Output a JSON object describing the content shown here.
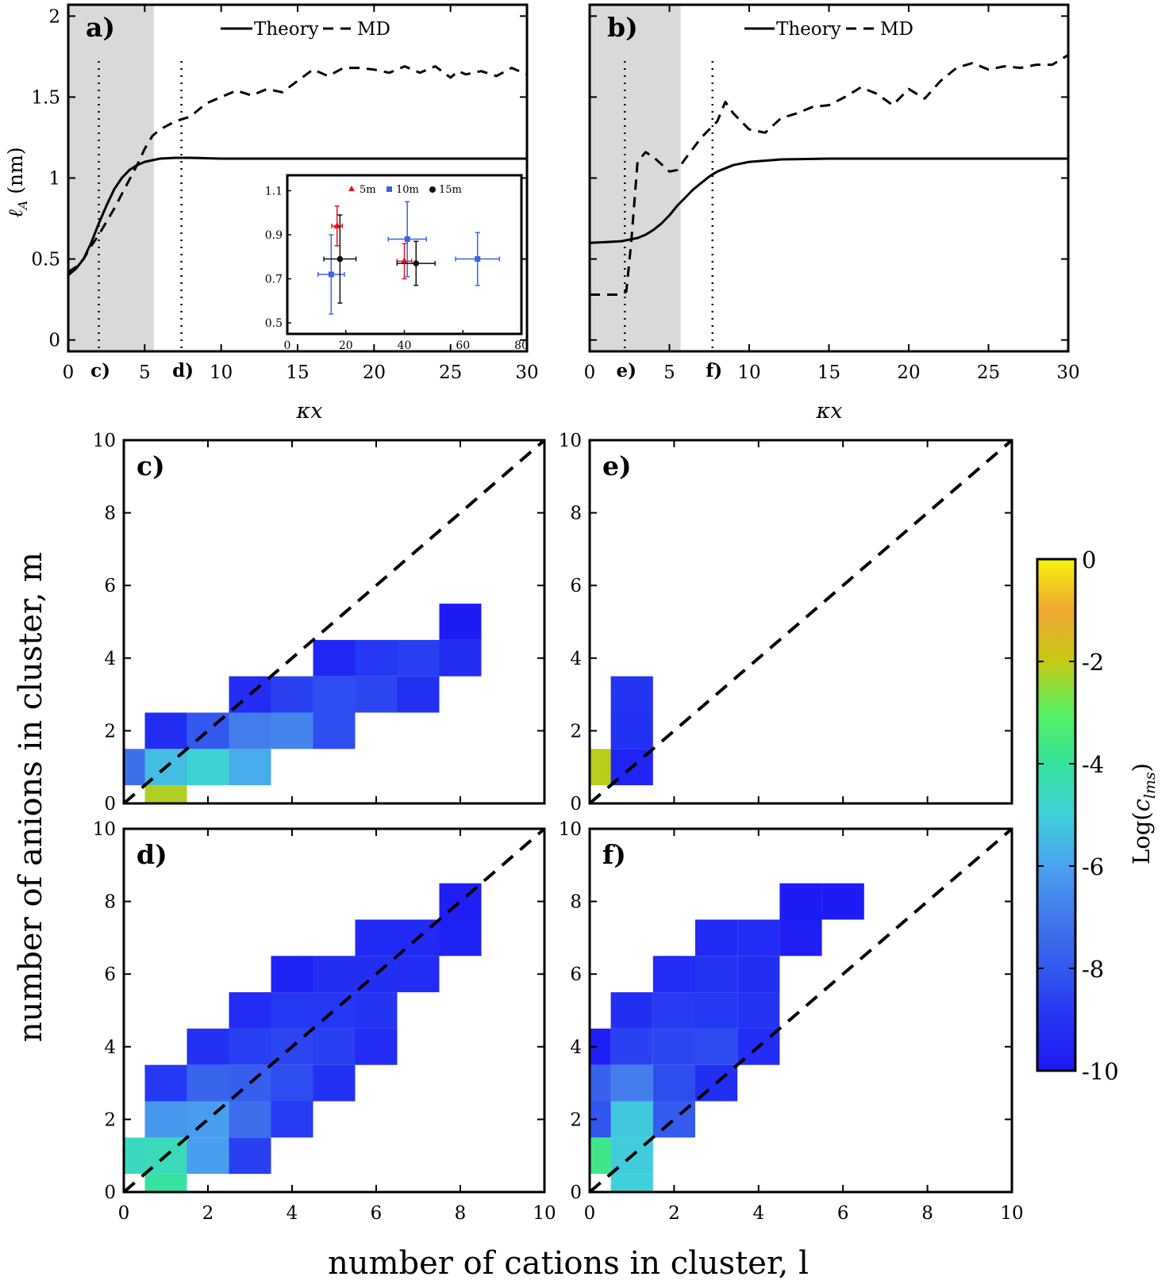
{
  "chart_data": [
    {
      "id": "a",
      "type": "line",
      "panel_label": "a)",
      "xlabel": "κx",
      "ylabel": "ℓA (nm)",
      "xlim": [
        0,
        30
      ],
      "ylim": [
        -0.07,
        2.07
      ],
      "xticks": [
        0,
        5,
        10,
        15,
        20,
        25,
        30
      ],
      "yticks": [
        0,
        0.5,
        1,
        1.5,
        2
      ],
      "ytick_labels": [
        "0",
        "0.5",
        "1",
        "1.5",
        "2"
      ],
      "shaded_region": [
        0,
        5.6
      ],
      "vlines": [
        {
          "x": 2.0,
          "label": "c)"
        },
        {
          "x": 7.4,
          "label": "d)"
        }
      ],
      "legend": [
        "Theory",
        "MD"
      ],
      "series": [
        {
          "name": "Theory",
          "style": "solid",
          "x": [
            0,
            0.5,
            1,
            1.5,
            2,
            2.5,
            3,
            3.5,
            4,
            4.5,
            5,
            5.5,
            6,
            7,
            8,
            10,
            15,
            20,
            25,
            30
          ],
          "y": [
            0.4,
            0.44,
            0.5,
            0.6,
            0.72,
            0.83,
            0.93,
            1.0,
            1.05,
            1.08,
            1.1,
            1.11,
            1.12,
            1.125,
            1.125,
            1.12,
            1.12,
            1.12,
            1.12,
            1.12
          ]
        },
        {
          "name": "MD",
          "style": "dashed",
          "x": [
            0,
            0.5,
            1,
            1.5,
            2,
            2.5,
            3,
            3.5,
            4,
            4.5,
            5,
            5.5,
            6,
            7,
            8,
            9,
            10,
            11,
            12,
            13,
            14,
            15,
            16,
            17,
            18,
            19,
            20,
            21,
            22,
            23,
            24,
            25,
            25.5,
            26,
            27,
            28,
            29,
            30
          ],
          "y": [
            0.42,
            0.45,
            0.5,
            0.58,
            0.65,
            0.73,
            0.81,
            0.9,
            0.99,
            1.08,
            1.18,
            1.26,
            1.3,
            1.35,
            1.38,
            1.46,
            1.5,
            1.54,
            1.51,
            1.55,
            1.53,
            1.6,
            1.67,
            1.63,
            1.68,
            1.68,
            1.67,
            1.65,
            1.69,
            1.65,
            1.69,
            1.62,
            1.66,
            1.64,
            1.66,
            1.63,
            1.68,
            1.64
          ]
        }
      ],
      "inset": {
        "type": "scatter",
        "xlim": [
          0,
          80
        ],
        "ylim": [
          0.45,
          1.17
        ],
        "xticks": [
          0,
          20,
          40,
          60,
          80
        ],
        "yticks": [
          0.5,
          0.7,
          0.9,
          1.1
        ],
        "ytick_labels": [
          "0.5",
          "0.7",
          "0.9",
          "1.1"
        ],
        "legend": [
          "5m",
          "10m",
          "15m"
        ],
        "series": [
          {
            "name": "5m",
            "color": "#e8141c",
            "marker": "triangle",
            "points": [
              {
                "x": 17,
                "y": 0.94,
                "xerr": 1.8,
                "yerr": 0.09
              },
              {
                "x": 40,
                "y": 0.78,
                "xerr": 2.5,
                "yerr": 0.08
              }
            ]
          },
          {
            "name": "10m",
            "color": "#3a62e6",
            "marker": "square",
            "points": [
              {
                "x": 15,
                "y": 0.72,
                "xerr": 4.5,
                "yerr": 0.18
              },
              {
                "x": 41,
                "y": 0.88,
                "xerr": 6.5,
                "yerr": 0.17
              },
              {
                "x": 65,
                "y": 0.79,
                "xerr": 7.5,
                "yerr": 0.12
              }
            ]
          },
          {
            "name": "15m",
            "color": "#111111",
            "marker": "circle",
            "points": [
              {
                "x": 18,
                "y": 0.79,
                "xerr": 5.5,
                "yerr": 0.2
              },
              {
                "x": 44,
                "y": 0.77,
                "xerr": 6.5,
                "yerr": 0.1
              }
            ]
          }
        ]
      }
    },
    {
      "id": "b",
      "type": "line",
      "panel_label": "b)",
      "xlabel": "κx",
      "xlim": [
        0,
        30
      ],
      "ylim": [
        -0.07,
        2.07
      ],
      "xticks": [
        0,
        5,
        10,
        15,
        20,
        25,
        30
      ],
      "yticks": [
        0,
        0.5,
        1,
        1.5,
        2
      ],
      "shaded_region": [
        0,
        5.7
      ],
      "vlines": [
        {
          "x": 2.2,
          "label": "e)"
        },
        {
          "x": 7.7,
          "label": "f)"
        }
      ],
      "legend": [
        "Theory",
        "MD"
      ],
      "series": [
        {
          "name": "Theory",
          "style": "solid",
          "x": [
            0,
            1,
            2,
            3,
            3.5,
            4,
            4.5,
            5,
            5.5,
            6,
            6.5,
            7,
            7.5,
            8,
            9,
            10,
            12,
            15,
            20,
            25,
            30
          ],
          "y": [
            0.6,
            0.605,
            0.61,
            0.63,
            0.65,
            0.68,
            0.72,
            0.77,
            0.83,
            0.88,
            0.93,
            0.97,
            1.01,
            1.04,
            1.08,
            1.1,
            1.115,
            1.12,
            1.12,
            1.12,
            1.12
          ]
        },
        {
          "name": "MD",
          "style": "dashed",
          "x": [
            0,
            1,
            2,
            2.3,
            2.6,
            3,
            3.5,
            4,
            5,
            5.5,
            6,
            7,
            8,
            8.5,
            9,
            10,
            11,
            12,
            13,
            14,
            15,
            16,
            17,
            18,
            19,
            20,
            21,
            22,
            23,
            24,
            25,
            26,
            27,
            28,
            29,
            30
          ],
          "y": [
            0.28,
            0.28,
            0.28,
            0.3,
            0.6,
            1.1,
            1.16,
            1.13,
            1.04,
            1.05,
            1.12,
            1.25,
            1.35,
            1.47,
            1.4,
            1.3,
            1.28,
            1.37,
            1.4,
            1.44,
            1.45,
            1.5,
            1.56,
            1.52,
            1.45,
            1.55,
            1.49,
            1.6,
            1.68,
            1.71,
            1.67,
            1.69,
            1.68,
            1.7,
            1.7,
            1.76
          ]
        }
      ]
    },
    {
      "id": "c",
      "type": "heatmap",
      "panel_label": "c)",
      "xlim": [
        0,
        10
      ],
      "ylim": [
        0,
        10
      ],
      "xticks": [
        0,
        2,
        4,
        6,
        8,
        10
      ],
      "yticks": [
        0,
        2,
        4,
        6,
        8,
        10
      ],
      "diagonal": "y = x",
      "cells": [
        [
          1,
          0,
          -2.2
        ],
        [
          0,
          1,
          -7.3
        ],
        [
          1,
          1,
          -5.4
        ],
        [
          2,
          1,
          -4.9
        ],
        [
          3,
          1,
          -5.8
        ],
        [
          1,
          2,
          -9.2
        ],
        [
          2,
          2,
          -8.0
        ],
        [
          3,
          2,
          -6.9
        ],
        [
          4,
          2,
          -6.7
        ],
        [
          5,
          2,
          -8.3
        ],
        [
          3,
          3,
          -9.3
        ],
        [
          4,
          3,
          -8.6
        ],
        [
          5,
          3,
          -8.3
        ],
        [
          6,
          3,
          -8.5
        ],
        [
          7,
          3,
          -9.1
        ],
        [
          5,
          4,
          -9.5
        ],
        [
          6,
          4,
          -8.9
        ],
        [
          7,
          4,
          -8.7
        ],
        [
          8,
          4,
          -9.2
        ],
        [
          8,
          5,
          -9.9
        ]
      ]
    },
    {
      "id": "e",
      "type": "heatmap",
      "panel_label": "e)",
      "xlim": [
        0,
        10
      ],
      "ylim": [
        0,
        10
      ],
      "xticks": [
        0,
        2,
        4,
        6,
        8,
        10
      ],
      "yticks": [
        0,
        2,
        4,
        6,
        8,
        10
      ],
      "diagonal": "y = x",
      "cells": [
        [
          0,
          1,
          -2.1
        ],
        [
          1,
          1,
          -9.6
        ],
        [
          1,
          2,
          -9.1
        ],
        [
          1,
          3,
          -9.0
        ]
      ]
    },
    {
      "id": "d",
      "type": "heatmap",
      "panel_label": "d)",
      "xlim": [
        0,
        10
      ],
      "ylim": [
        0,
        10
      ],
      "xticks": [
        0,
        2,
        4,
        6,
        8,
        10
      ],
      "yticks": [
        0,
        2,
        4,
        6,
        8,
        10
      ],
      "xtick_labels": [
        "0",
        "2",
        "4",
        "6",
        "8",
        "10"
      ],
      "diagonal": "y = x",
      "cells": [
        [
          1,
          0,
          -4.1
        ],
        [
          0,
          1,
          -4.6
        ],
        [
          1,
          1,
          -4.5
        ],
        [
          2,
          1,
          -6.1
        ],
        [
          3,
          1,
          -8.7
        ],
        [
          1,
          2,
          -6.3
        ],
        [
          2,
          2,
          -6.1
        ],
        [
          3,
          2,
          -7.3
        ],
        [
          4,
          2,
          -8.8
        ],
        [
          1,
          3,
          -8.9
        ],
        [
          2,
          3,
          -7.6
        ],
        [
          3,
          3,
          -7.8
        ],
        [
          4,
          3,
          -8.3
        ],
        [
          5,
          3,
          -9.1
        ],
        [
          2,
          4,
          -9.1
        ],
        [
          3,
          4,
          -8.7
        ],
        [
          4,
          4,
          -8.5
        ],
        [
          5,
          4,
          -8.7
        ],
        [
          6,
          4,
          -9.3
        ],
        [
          3,
          5,
          -9.3
        ],
        [
          4,
          5,
          -8.9
        ],
        [
          5,
          5,
          -8.9
        ],
        [
          6,
          5,
          -9.0
        ],
        [
          4,
          6,
          -9.7
        ],
        [
          5,
          6,
          -9.2
        ],
        [
          6,
          6,
          -9.2
        ],
        [
          7,
          6,
          -9.3
        ],
        [
          6,
          7,
          -9.4
        ],
        [
          7,
          7,
          -9.4
        ],
        [
          8,
          7,
          -9.7
        ],
        [
          8,
          8,
          -9.8
        ]
      ]
    },
    {
      "id": "f",
      "type": "heatmap",
      "panel_label": "f)",
      "xlim": [
        0,
        10
      ],
      "ylim": [
        0,
        10
      ],
      "xticks": [
        0,
        2,
        4,
        6,
        8,
        10
      ],
      "yticks": [
        0,
        2,
        4,
        6,
        8,
        10
      ],
      "xtick_labels": [
        "0",
        "2",
        "4",
        "6",
        "8",
        "10"
      ],
      "diagonal": "y = x",
      "cells": [
        [
          0,
          1,
          -3.7
        ],
        [
          1,
          1,
          -5.1
        ],
        [
          1,
          0,
          -5.0
        ],
        [
          1,
          2,
          -5.2
        ],
        [
          0,
          2,
          -8.1
        ],
        [
          2,
          2,
          -7.9
        ],
        [
          1,
          3,
          -6.9
        ],
        [
          0,
          3,
          -7.7
        ],
        [
          2,
          3,
          -8.3
        ],
        [
          3,
          3,
          -9.2
        ],
        [
          0,
          4,
          -9.8
        ],
        [
          1,
          4,
          -8.6
        ],
        [
          2,
          4,
          -8.5
        ],
        [
          3,
          4,
          -8.4
        ],
        [
          4,
          4,
          -9.3
        ],
        [
          1,
          5,
          -9.2
        ],
        [
          2,
          5,
          -8.8
        ],
        [
          3,
          5,
          -8.9
        ],
        [
          4,
          5,
          -9.0
        ],
        [
          2,
          6,
          -9.3
        ],
        [
          3,
          6,
          -9.0
        ],
        [
          4,
          6,
          -9.2
        ],
        [
          3,
          7,
          -9.4
        ],
        [
          4,
          7,
          -9.3
        ],
        [
          5,
          7,
          -9.8
        ],
        [
          5,
          8,
          -9.9
        ],
        [
          6,
          8,
          -9.9
        ]
      ]
    }
  ],
  "labels": {
    "shared_ylabel": "number of anions in cluster, m",
    "shared_xlabel": "number of cations in cluster, l",
    "legend_theory": "Theory",
    "legend_md": "MD",
    "inset_legend_5m": "5m",
    "inset_legend_10m": "10m",
    "inset_legend_15m": "15m",
    "kx": "κx",
    "ylab_a_main": "ℓ",
    "ylab_a_sub": "A",
    "ylab_a_unit": " (nm)",
    "colorbar_log": "Log(",
    "colorbar_c": "c",
    "colorbar_sub": "lms",
    "colorbar_close": ")"
  },
  "colorbar": {
    "range": [
      -10,
      0
    ],
    "ticks": [
      0,
      -2,
      -4,
      -6,
      -8,
      -10
    ],
    "tick_labels": [
      "0",
      "-2",
      "-4",
      "-6",
      "-8",
      "-10"
    ],
    "colormap": "parula"
  }
}
